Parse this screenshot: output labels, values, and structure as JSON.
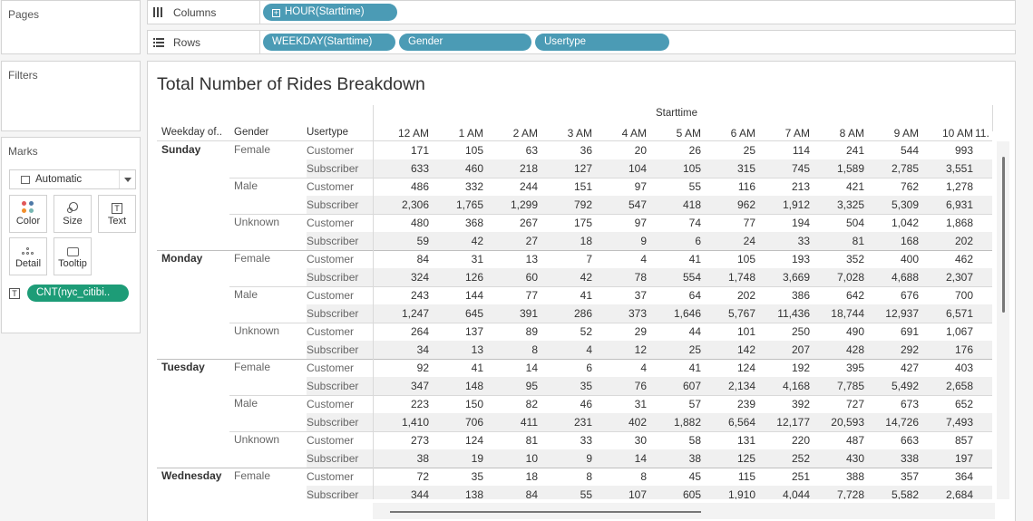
{
  "left_panel": {
    "pages_title": "Pages",
    "filters_title": "Filters",
    "marks_title": "Marks",
    "mark_type": "Automatic",
    "buttons": {
      "color": "Color",
      "size": "Size",
      "text": "Text",
      "detail": "Detail",
      "tooltip": "Tooltip"
    },
    "measure_pill": "CNT(nyc_citibi.."
  },
  "shelves": {
    "columns_label": "Columns",
    "rows_label": "Rows",
    "columns_pills": [
      "HOUR(Starttime)"
    ],
    "rows_pills": [
      "WEEKDAY(Starttime)",
      "Gender",
      "Usertype"
    ]
  },
  "colors": {
    "dimension_pill": "#4b9bb5",
    "measure_pill": "#1d9c77",
    "color_dots": [
      "#e15759",
      "#4e79a7",
      "#f28e2b",
      "#76b7b2"
    ]
  },
  "viz": {
    "title": "Total Number of Rides Breakdown",
    "column_group_label": "Starttime",
    "row_headers": [
      "Weekday of..",
      "Gender",
      "Usertype"
    ],
    "columns": [
      "12 AM",
      "1 AM",
      "2 AM",
      "3 AM",
      "4 AM",
      "5 AM",
      "6 AM",
      "7 AM",
      "8 AM",
      "9 AM",
      "10 AM"
    ],
    "partial_column": "11.",
    "rows": [
      {
        "weekday": "Sunday",
        "gender": "Female",
        "usertype": "Customer",
        "values": [
          "171",
          "105",
          "63",
          "36",
          "20",
          "26",
          "25",
          "114",
          "241",
          "544",
          "993"
        ]
      },
      {
        "weekday": "",
        "gender": "",
        "usertype": "Subscriber",
        "values": [
          "633",
          "460",
          "218",
          "127",
          "104",
          "105",
          "315",
          "745",
          "1,589",
          "2,785",
          "3,551"
        ]
      },
      {
        "weekday": "",
        "gender": "Male",
        "usertype": "Customer",
        "values": [
          "486",
          "332",
          "244",
          "151",
          "97",
          "55",
          "116",
          "213",
          "421",
          "762",
          "1,278"
        ]
      },
      {
        "weekday": "",
        "gender": "",
        "usertype": "Subscriber",
        "values": [
          "2,306",
          "1,765",
          "1,299",
          "792",
          "547",
          "418",
          "962",
          "1,912",
          "3,325",
          "5,309",
          "6,931"
        ]
      },
      {
        "weekday": "",
        "gender": "Unknown",
        "usertype": "Customer",
        "values": [
          "480",
          "368",
          "267",
          "175",
          "97",
          "74",
          "77",
          "194",
          "504",
          "1,042",
          "1,868"
        ]
      },
      {
        "weekday": "",
        "gender": "",
        "usertype": "Subscriber",
        "values": [
          "59",
          "42",
          "27",
          "18",
          "9",
          "6",
          "24",
          "33",
          "81",
          "168",
          "202"
        ]
      },
      {
        "weekday": "Monday",
        "gender": "Female",
        "usertype": "Customer",
        "values": [
          "84",
          "31",
          "13",
          "7",
          "4",
          "41",
          "105",
          "193",
          "352",
          "400",
          "462"
        ]
      },
      {
        "weekday": "",
        "gender": "",
        "usertype": "Subscriber",
        "values": [
          "324",
          "126",
          "60",
          "42",
          "78",
          "554",
          "1,748",
          "3,669",
          "7,028",
          "4,688",
          "2,307"
        ]
      },
      {
        "weekday": "",
        "gender": "Male",
        "usertype": "Customer",
        "values": [
          "243",
          "144",
          "77",
          "41",
          "37",
          "64",
          "202",
          "386",
          "642",
          "676",
          "700"
        ]
      },
      {
        "weekday": "",
        "gender": "",
        "usertype": "Subscriber",
        "values": [
          "1,247",
          "645",
          "391",
          "286",
          "373",
          "1,646",
          "5,767",
          "11,436",
          "18,744",
          "12,937",
          "6,571"
        ]
      },
      {
        "weekday": "",
        "gender": "Unknown",
        "usertype": "Customer",
        "values": [
          "264",
          "137",
          "89",
          "52",
          "29",
          "44",
          "101",
          "250",
          "490",
          "691",
          "1,067"
        ]
      },
      {
        "weekday": "",
        "gender": "",
        "usertype": "Subscriber",
        "values": [
          "34",
          "13",
          "8",
          "4",
          "12",
          "25",
          "142",
          "207",
          "428",
          "292",
          "176"
        ]
      },
      {
        "weekday": "Tuesday",
        "gender": "Female",
        "usertype": "Customer",
        "values": [
          "92",
          "41",
          "14",
          "6",
          "4",
          "41",
          "124",
          "192",
          "395",
          "427",
          "403"
        ]
      },
      {
        "weekday": "",
        "gender": "",
        "usertype": "Subscriber",
        "values": [
          "347",
          "148",
          "95",
          "35",
          "76",
          "607",
          "2,134",
          "4,168",
          "7,785",
          "5,492",
          "2,658"
        ]
      },
      {
        "weekday": "",
        "gender": "Male",
        "usertype": "Customer",
        "values": [
          "223",
          "150",
          "82",
          "46",
          "31",
          "57",
          "239",
          "392",
          "727",
          "673",
          "652"
        ]
      },
      {
        "weekday": "",
        "gender": "",
        "usertype": "Subscriber",
        "values": [
          "1,410",
          "706",
          "411",
          "231",
          "402",
          "1,882",
          "6,564",
          "12,177",
          "20,593",
          "14,726",
          "7,493"
        ]
      },
      {
        "weekday": "",
        "gender": "Unknown",
        "usertype": "Customer",
        "values": [
          "273",
          "124",
          "81",
          "33",
          "30",
          "58",
          "131",
          "220",
          "487",
          "663",
          "857"
        ]
      },
      {
        "weekday": "",
        "gender": "",
        "usertype": "Subscriber",
        "values": [
          "38",
          "19",
          "10",
          "9",
          "14",
          "38",
          "125",
          "252",
          "430",
          "338",
          "197"
        ]
      },
      {
        "weekday": "Wednesday",
        "gender": "Female",
        "usertype": "Customer",
        "values": [
          "72",
          "35",
          "18",
          "8",
          "8",
          "45",
          "115",
          "251",
          "388",
          "357",
          "364"
        ]
      },
      {
        "weekday": "",
        "gender": "",
        "usertype": "Subscriber",
        "values": [
          "344",
          "138",
          "84",
          "55",
          "107",
          "605",
          "1,910",
          "4,044",
          "7,728",
          "5,582",
          "2,684"
        ]
      }
    ]
  }
}
